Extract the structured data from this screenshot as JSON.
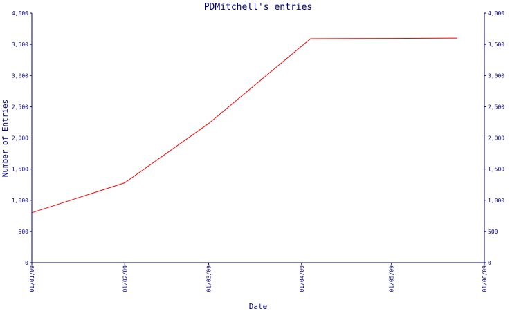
{
  "chart_data": {
    "type": "line",
    "title": "PDMitchell's entries",
    "xlabel": "Date",
    "ylabel": "Number of Entries",
    "x_tick_labels": [
      "01/01/09",
      "01/02/09",
      "01/03/09",
      "01/04/09",
      "01/05/09",
      "01/06/09"
    ],
    "y_tick_labels": [
      "0",
      "500",
      "1,000",
      "1,500",
      "2,000",
      "2,500",
      "3,000",
      "3,500",
      "4,000"
    ],
    "ylim": [
      0,
      4000
    ],
    "xlim": [
      "2009-01-01",
      "2009-06-01"
    ],
    "grid": false,
    "legend": "none",
    "series": [
      {
        "x": [
          "2009-01-01",
          "2009-02-01",
          "2009-03-01",
          "2009-04-04",
          "2009-05-01",
          "2009-05-23"
        ],
        "y": [
          800,
          1280,
          2230,
          3590,
          3595,
          3600
        ]
      }
    ],
    "colors": {
      "line": "#ff0000",
      "axes": "#000080",
      "text": "#000080",
      "background": "#ffffff"
    }
  }
}
